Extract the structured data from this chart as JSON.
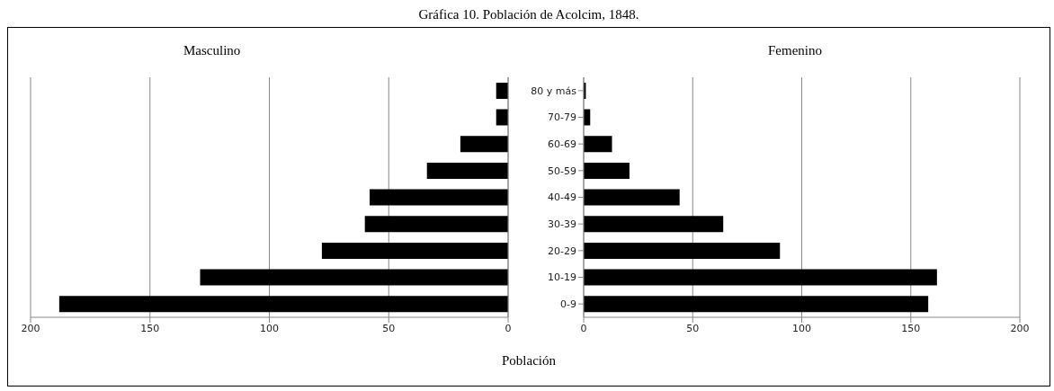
{
  "chart_data": [
    {
      "type": "bar",
      "orientation": "horizontal",
      "title": "Gráfica 10. Población de Acolcim, 1848.",
      "xlabel": "Población",
      "categories": [
        null,
        null,
        null,
        null,
        null,
        null,
        null,
        null,
        null
      ],
      "series": [
        {
          "name": "Masculino",
          "color": "#000000",
          "values": [
            5,
            5,
            20,
            34,
            58,
            60,
            78,
            129,
            188
          ]
        }
      ],
      "xlim": [
        200,
        0
      ],
      "xticks": [
        200,
        150,
        100,
        50,
        0
      ],
      "grid": "x",
      "tick_labels": "x"
    },
    {
      "type": "bar",
      "orientation": "horizontal",
      "categories": [
        "80 y más",
        "70-79",
        "60-69",
        "50-59",
        "40-49",
        "30-39",
        "20-29",
        "10-19",
        "0-9"
      ],
      "series": [
        {
          "name": "Femenino",
          "color": "#000000",
          "values": [
            1,
            3,
            13,
            21,
            44,
            64,
            90,
            162,
            158
          ]
        }
      ],
      "xlim": [
        0,
        200
      ],
      "xticks": [
        0,
        50,
        100,
        150,
        200
      ],
      "grid": "x"
    }
  ]
}
